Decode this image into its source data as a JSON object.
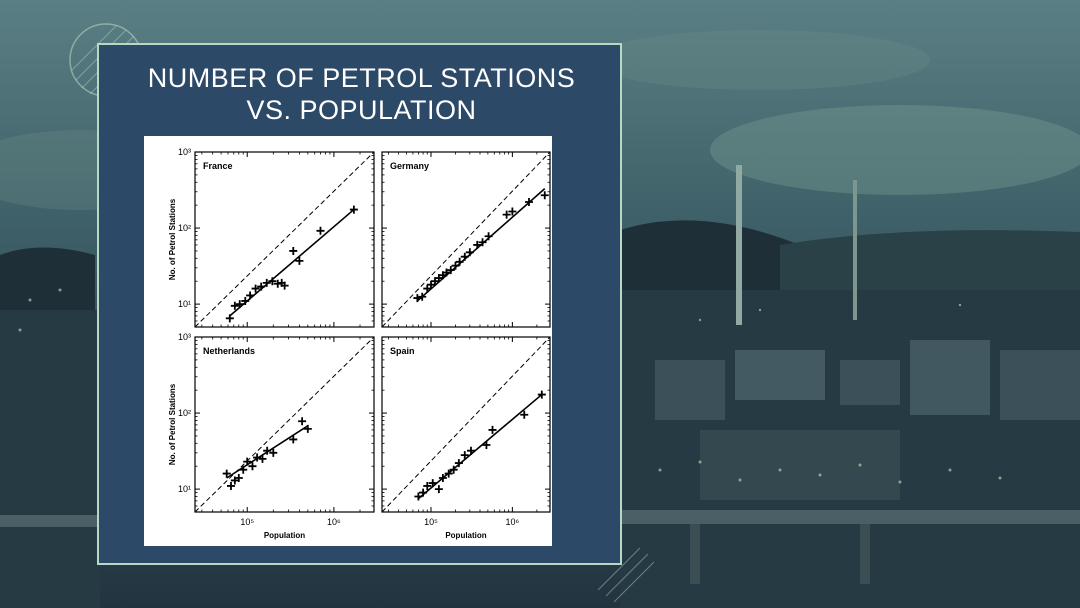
{
  "title_line1": "NUMBER OF PETROL STATIONS",
  "title_line2": "VS. POPULATION",
  "colors": {
    "card_background": "#2c4a67",
    "card_border": "#b9d8c4",
    "title": "#ffffff",
    "plot_ink": "#000000"
  },
  "chart_data": [
    {
      "type": "scatter",
      "title": "France",
      "xlabel": "",
      "ylabel": "No. of Petrol Stations",
      "xscale": "log",
      "yscale": "log",
      "xlim": [
        25000,
        2900000
      ],
      "ylim": [
        5,
        1000
      ],
      "y_ticks": [
        "10¹",
        "10²",
        "10³"
      ],
      "x_ticks": [],
      "points": [
        [
          63000,
          6.5
        ],
        [
          72000,
          9.5
        ],
        [
          82000,
          10
        ],
        [
          95000,
          11
        ],
        [
          108000,
          13
        ],
        [
          125000,
          16
        ],
        [
          145000,
          17
        ],
        [
          168000,
          19
        ],
        [
          195000,
          20
        ],
        [
          225000,
          18.5
        ],
        [
          250000,
          19
        ],
        [
          270000,
          17.5
        ],
        [
          340000,
          50
        ],
        [
          400000,
          37
        ],
        [
          700000,
          92
        ],
        [
          1700000,
          175
        ]
      ],
      "fit_line": [
        [
          63000,
          7
        ],
        [
          1700000,
          175
        ]
      ],
      "reference_line": "y = x"
    },
    {
      "type": "scatter",
      "title": "Germany",
      "xlabel": "",
      "ylabel": "",
      "xscale": "log",
      "yscale": "log",
      "xlim": [
        25000,
        2900000
      ],
      "ylim": [
        5,
        1000
      ],
      "y_ticks": [],
      "x_ticks": [],
      "points": [
        [
          68000,
          12
        ],
        [
          78000,
          12.5
        ],
        [
          90000,
          16
        ],
        [
          100000,
          18
        ],
        [
          112000,
          20
        ],
        [
          125000,
          22
        ],
        [
          140000,
          24
        ],
        [
          155000,
          26
        ],
        [
          175000,
          28
        ],
        [
          200000,
          32
        ],
        [
          225000,
          36
        ],
        [
          260000,
          42
        ],
        [
          300000,
          48
        ],
        [
          370000,
          60
        ],
        [
          430000,
          65
        ],
        [
          510000,
          78
        ],
        [
          850000,
          150
        ],
        [
          1000000,
          165
        ],
        [
          1600000,
          220
        ],
        [
          2500000,
          270
        ]
      ],
      "fit_line": [
        [
          68000,
          11
        ],
        [
          2500000,
          330
        ]
      ],
      "reference_line": "y = x"
    },
    {
      "type": "scatter",
      "title": "Netherlands",
      "xlabel": "Population",
      "ylabel": "No. of Petrol Stations",
      "xscale": "log",
      "yscale": "log",
      "xlim": [
        25000,
        2900000
      ],
      "ylim": [
        5,
        1000
      ],
      "y_ticks": [
        "10¹",
        "10²",
        "10³"
      ],
      "x_ticks": [
        "10⁵",
        "10⁶"
      ],
      "points": [
        [
          58000,
          16
        ],
        [
          65000,
          11
        ],
        [
          72000,
          13
        ],
        [
          80000,
          14
        ],
        [
          90000,
          18
        ],
        [
          100000,
          23
        ],
        [
          115000,
          20
        ],
        [
          130000,
          26
        ],
        [
          150000,
          25
        ],
        [
          170000,
          32
        ],
        [
          200000,
          30
        ],
        [
          340000,
          45
        ],
        [
          430000,
          78
        ],
        [
          500000,
          62
        ]
      ],
      "fit_line": [
        [
          58000,
          14
        ],
        [
          500000,
          68
        ]
      ],
      "reference_line": "y = x"
    },
    {
      "type": "scatter",
      "title": "Spain",
      "xlabel": "Population",
      "ylabel": "",
      "xscale": "log",
      "yscale": "log",
      "xlim": [
        25000,
        2900000
      ],
      "ylim": [
        5,
        1000
      ],
      "y_ticks": [],
      "x_ticks": [
        "10⁵",
        "10⁶"
      ],
      "points": [
        [
          70000,
          8
        ],
        [
          80000,
          9
        ],
        [
          90000,
          11
        ],
        [
          105000,
          12
        ],
        [
          125000,
          10
        ],
        [
          140000,
          14
        ],
        [
          165000,
          16
        ],
        [
          190000,
          18
        ],
        [
          220000,
          22
        ],
        [
          260000,
          28
        ],
        [
          310000,
          32
        ],
        [
          480000,
          38
        ],
        [
          570000,
          60
        ],
        [
          1400000,
          95
        ],
        [
          2300000,
          175
        ]
      ],
      "fit_line": [
        [
          70000,
          7.5
        ],
        [
          2300000,
          175
        ]
      ],
      "reference_line": "y = x"
    }
  ]
}
